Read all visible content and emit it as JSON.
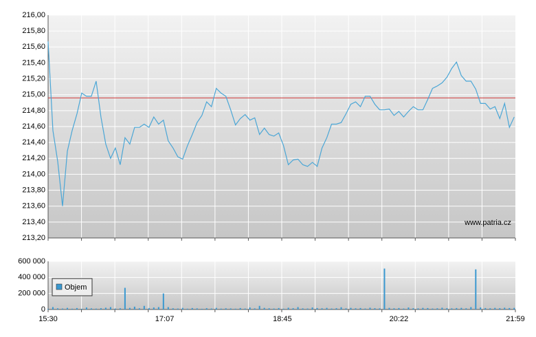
{
  "chart_data": [
    {
      "type": "line",
      "color": "#4aa6d6",
      "annotation": "www.patria.cz",
      "reference_line": {
        "value": 214.96,
        "color": "#d03a3a"
      },
      "xlim": [
        930,
        1319
      ],
      "ylim": [
        213.2,
        216.0
      ],
      "yticks": [
        {
          "value": 213.2,
          "label": "213,20"
        },
        {
          "value": 213.4,
          "label": "213,40"
        },
        {
          "value": 213.6,
          "label": "213,60"
        },
        {
          "value": 213.8,
          "label": "213,80"
        },
        {
          "value": 214.0,
          "label": "214,00"
        },
        {
          "value": 214.2,
          "label": "214,20"
        },
        {
          "value": 214.4,
          "label": "214,40"
        },
        {
          "value": 214.6,
          "label": "214,60"
        },
        {
          "value": 214.8,
          "label": "214,80"
        },
        {
          "value": 215.0,
          "label": "215,00"
        },
        {
          "value": 215.2,
          "label": "215,20"
        },
        {
          "value": 215.4,
          "label": "215,40"
        },
        {
          "value": 215.6,
          "label": "215,60"
        },
        {
          "value": 215.8,
          "label": "215,80"
        },
        {
          "value": 216.0,
          "label": "216,00"
        }
      ],
      "grid": true,
      "x": [
        930,
        934,
        938,
        942,
        946,
        950,
        954,
        958,
        962,
        966,
        970,
        974,
        978,
        982,
        986,
        990,
        994,
        998,
        1002,
        1006,
        1010,
        1014,
        1018,
        1022,
        1026,
        1030,
        1034,
        1038,
        1042,
        1046,
        1050,
        1054,
        1058,
        1062,
        1066,
        1070,
        1074,
        1078,
        1082,
        1086,
        1090,
        1094,
        1098,
        1102,
        1106,
        1110,
        1114,
        1118,
        1122,
        1126,
        1130,
        1134,
        1138,
        1142,
        1146,
        1150,
        1154,
        1158,
        1162,
        1166,
        1170,
        1174,
        1178,
        1182,
        1186,
        1190,
        1194,
        1198,
        1202,
        1206,
        1210,
        1214,
        1218,
        1222,
        1226,
        1230,
        1234,
        1238,
        1242,
        1246,
        1250,
        1254,
        1258,
        1262,
        1266,
        1270,
        1274,
        1278,
        1282,
        1286,
        1290,
        1294,
        1298,
        1302,
        1306,
        1310,
        1314,
        1318
      ],
      "values": [
        215.67,
        214.55,
        214.16,
        213.6,
        214.29,
        214.55,
        214.76,
        215.02,
        214.98,
        214.98,
        215.17,
        214.72,
        214.38,
        214.2,
        214.33,
        214.12,
        214.46,
        214.38,
        214.59,
        214.59,
        214.63,
        214.59,
        214.72,
        214.63,
        214.68,
        214.42,
        214.33,
        214.22,
        214.19,
        214.36,
        214.5,
        214.65,
        214.74,
        214.91,
        214.85,
        215.08,
        215.02,
        214.98,
        214.81,
        214.62,
        214.7,
        214.75,
        214.68,
        214.71,
        214.5,
        214.58,
        214.5,
        214.48,
        214.52,
        214.36,
        214.12,
        214.18,
        214.19,
        214.12,
        214.1,
        214.15,
        214.1,
        214.33,
        214.46,
        214.63,
        214.63,
        214.65,
        214.76,
        214.88,
        214.91,
        214.85,
        214.98,
        214.98,
        214.88,
        214.81,
        214.81,
        214.82,
        214.74,
        214.79,
        214.72,
        214.79,
        214.85,
        214.81,
        214.81,
        214.94,
        215.08,
        215.11,
        215.15,
        215.22,
        215.33,
        215.41,
        215.24,
        215.17,
        215.17,
        215.07,
        214.89,
        214.89,
        214.82,
        214.85,
        214.7,
        214.89,
        214.59,
        214.72
      ]
    },
    {
      "type": "bar",
      "legend": "upper left",
      "xlim": [
        930,
        1319
      ],
      "xticks": [
        {
          "value": 930,
          "label": "15:30"
        },
        {
          "value": 1027,
          "label": "17:07"
        },
        {
          "value": 1125,
          "label": "18:45"
        },
        {
          "value": 1222,
          "label": "20:22"
        },
        {
          "value": 1319,
          "label": "21:59"
        }
      ],
      "ylim": [
        0,
        600000
      ],
      "yticks": [
        0,
        {
          "value": 200000,
          "label": "200 000"
        },
        {
          "value": 400000,
          "label": "400 000"
        },
        {
          "value": 600000,
          "label": "600 000"
        }
      ],
      "grid": true,
      "series": [
        {
          "name": "Objem",
          "color": "#3a98d0",
          "x": [
            930,
            934,
            938,
            942,
            946,
            950,
            954,
            958,
            962,
            966,
            970,
            974,
            978,
            982,
            986,
            990,
            994,
            998,
            1002,
            1006,
            1010,
            1014,
            1018,
            1022,
            1026,
            1030,
            1034,
            1038,
            1042,
            1046,
            1050,
            1054,
            1058,
            1062,
            1066,
            1070,
            1074,
            1078,
            1082,
            1086,
            1090,
            1094,
            1098,
            1102,
            1106,
            1110,
            1114,
            1118,
            1122,
            1126,
            1130,
            1134,
            1138,
            1142,
            1146,
            1150,
            1154,
            1158,
            1162,
            1166,
            1170,
            1174,
            1178,
            1182,
            1186,
            1190,
            1194,
            1198,
            1202,
            1206,
            1210,
            1214,
            1218,
            1222,
            1226,
            1230,
            1234,
            1238,
            1242,
            1246,
            1250,
            1254,
            1258,
            1262,
            1266,
            1270,
            1274,
            1278,
            1282,
            1286,
            1290,
            1294,
            1298,
            1302,
            1306,
            1310,
            1314,
            1318
          ],
          "values": [
            8000,
            30000,
            15000,
            12000,
            20000,
            10000,
            18000,
            9000,
            25000,
            14000,
            11000,
            16000,
            22000,
            30000,
            12000,
            15000,
            270000,
            20000,
            35000,
            15000,
            45000,
            18000,
            25000,
            30000,
            200000,
            30000,
            15000,
            12000,
            20000,
            10000,
            18000,
            14000,
            9000,
            16000,
            12000,
            20000,
            11000,
            15000,
            13000,
            10000,
            18000,
            12000,
            25000,
            14000,
            45000,
            20000,
            15000,
            12000,
            18000,
            10000,
            22000,
            16000,
            30000,
            14000,
            12000,
            25000,
            18000,
            15000,
            20000,
            12000,
            16000,
            28000,
            14000,
            20000,
            15000,
            18000,
            12000,
            22000,
            16000,
            14000,
            510000,
            20000,
            15000,
            18000,
            12000,
            25000,
            16000,
            14000,
            20000,
            18000,
            12000,
            15000,
            22000,
            16000,
            14000,
            18000,
            20000,
            15000,
            30000,
            500000,
            25000,
            18000,
            15000,
            20000,
            16000,
            22000,
            18000,
            20000
          ]
        }
      ]
    }
  ]
}
